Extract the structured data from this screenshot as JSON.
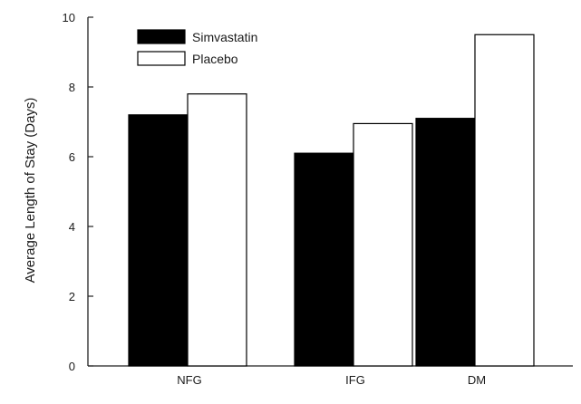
{
  "chart_data": {
    "type": "bar",
    "categories": [
      "NFG",
      "IFG",
      "DM"
    ],
    "series": [
      {
        "name": "Simvastatin",
        "values": [
          7.2,
          6.1,
          7.1
        ],
        "color": "#000000"
      },
      {
        "name": "Placebo",
        "values": [
          7.8,
          6.95,
          9.5
        ],
        "color": "#ffffff"
      }
    ],
    "title": "",
    "xlabel": "",
    "ylabel": "Average Length of Stay (Days)",
    "ylim": [
      0,
      10
    ],
    "yticks": [
      0,
      2,
      4,
      6,
      8,
      10
    ],
    "grid": false,
    "legend": "top-left"
  }
}
